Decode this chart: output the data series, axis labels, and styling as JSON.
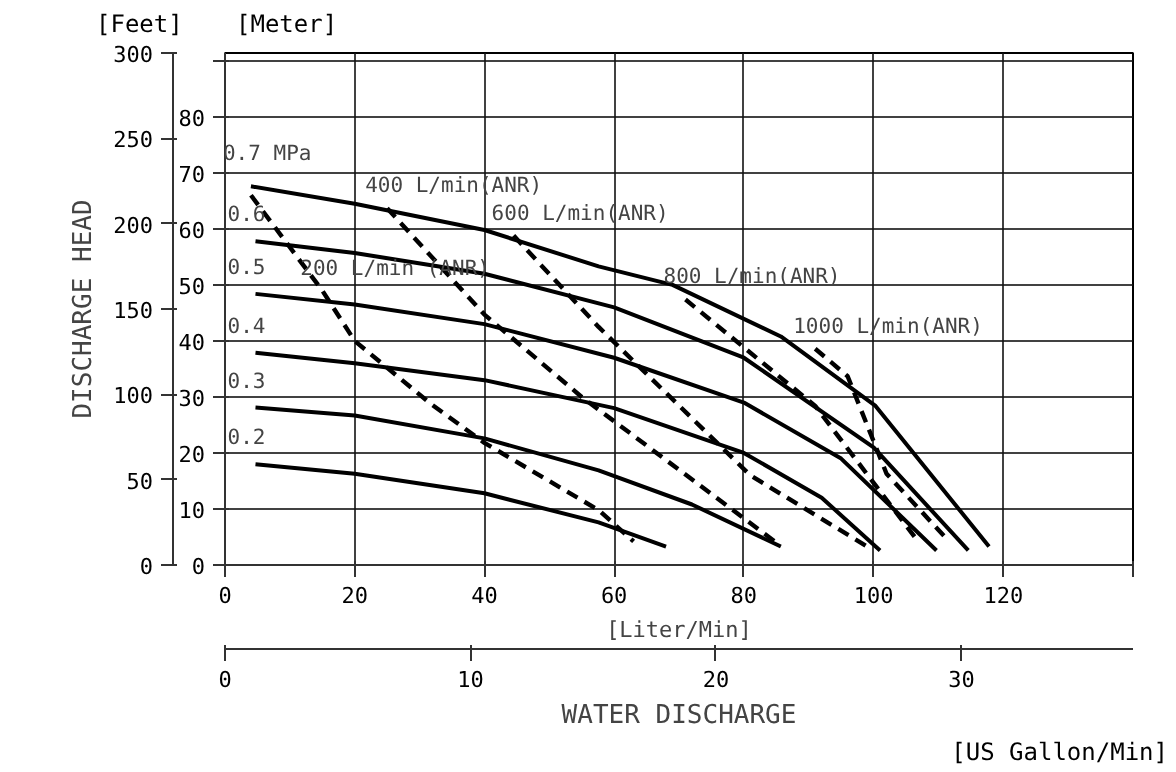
{
  "chart_data": {
    "type": "line",
    "xlabel": "[Liter/Min]",
    "x2label": "[US Gallon/Min]",
    "ylabel": "[Meter]",
    "y2label": "[Feet]",
    "xlim": [
      0,
      140
    ],
    "xticks": [
      0,
      20,
      40,
      60,
      80,
      100,
      120,
      {
        "value": 140,
        "label": null
      }
    ],
    "x2lim": [
      0,
      36.99
    ],
    "x2ticks": [
      0,
      10,
      20,
      30
    ],
    "ylim": [
      0,
      91.4
    ],
    "yticks": [
      0,
      10,
      20,
      30,
      40,
      50,
      60,
      70,
      80,
      {
        "value": 90,
        "label": null
      }
    ],
    "y2lim": [
      0,
      300
    ],
    "y2ticks": [
      0,
      50,
      100,
      150,
      200,
      250,
      300
    ],
    "grid": true,
    "marker": "none",
    "series": [
      {
        "color": "#000000",
        "line_style": "solid",
        "x": [
          4.7,
          20,
          40,
          57.6,
          72,
          85.7
        ],
        "values": [
          28.1,
          26.7,
          22.6,
          16.9,
          10.8,
          3.3
        ]
      },
      {
        "color": "#000000",
        "line_style": "solid",
        "x": [
          4.7,
          20,
          40,
          57.6,
          68
        ],
        "values": [
          18,
          16.3,
          12.8,
          7.6,
          3.3
        ]
      },
      {
        "color": "#000000",
        "line_style": "solid",
        "x": [
          4.7,
          20,
          40,
          60,
          80,
          92,
          101
        ],
        "values": [
          37.9,
          36,
          33,
          28,
          20,
          12,
          2.6
        ]
      },
      {
        "color": "#000000",
        "line_style": "solid",
        "x": [
          4.7,
          20,
          40,
          60,
          80,
          95,
          109.7
        ],
        "values": [
          48.4,
          46.5,
          43,
          37,
          29,
          19,
          2.6
        ]
      },
      {
        "color": "#000000",
        "line_style": "solid",
        "x": [
          4.7,
          20,
          40,
          60,
          80,
          100,
          114.6
        ],
        "values": [
          57.8,
          55.7,
          52,
          46,
          37,
          21,
          2.6
        ]
      },
      {
        "color": "#000000",
        "line_style": "solid",
        "x": [
          4,
          20,
          40,
          57.6,
          69,
          85.7,
          100.3,
          117.8
        ],
        "values": [
          67.6,
          64.5,
          59.8,
          53.3,
          50,
          40.8,
          28.4,
          3.3
        ]
      },
      {
        "color": "#000000",
        "line_style": "dashed",
        "x": [
          4,
          15,
          20,
          31.7,
          40,
          57.6,
          63
        ],
        "values": [
          66,
          49,
          40,
          28.8,
          21.8,
          9.8,
          4.2
        ]
      },
      {
        "color": "#000000",
        "line_style": "dashed",
        "x": [
          25,
          40,
          55,
          70,
          85
        ],
        "values": [
          63.7,
          44.7,
          30,
          17,
          4
        ]
      },
      {
        "color": "#000000",
        "line_style": "dashed",
        "x": [
          44.5,
          57.6,
          81,
          99
        ],
        "values": [
          58.8,
          42.5,
          16,
          3.3
        ]
      },
      {
        "color": "#000000",
        "line_style": "dashed",
        "x": [
          71,
          91,
          107
        ],
        "values": [
          47.4,
          28.4,
          4
        ]
      },
      {
        "color": "#000000",
        "line_style": "dashed",
        "x": [
          91,
          96,
          102,
          111
        ],
        "values": [
          38.6,
          33.7,
          16.3,
          5
        ]
      }
    ],
    "annotations": [
      "DISCHARGE HEAD",
      "WATER DISCHARGE",
      {
        "text": "0.7 MPa",
        "x": 4,
        "y": 67.6
      },
      {
        "text": "0.6",
        "x": 4.7,
        "y": 57.8
      },
      {
        "text": "0.5",
        "x": 4.7,
        "y": 48.4
      },
      {
        "text": "0.4",
        "x": 4.7,
        "y": 37.9
      },
      {
        "text": "0.3",
        "x": 4.7,
        "y": 28.1
      },
      {
        "text": "0.2",
        "x": 4.7,
        "y": 18
      },
      {
        "text": "200 L/min (ANR)",
        "x": 15,
        "y": 49
      },
      {
        "text": "400 L/min(ANR)",
        "x": 25,
        "y": 63.7
      },
      {
        "text": "600 L/min(ANR)",
        "x": 44.5,
        "y": 58.8
      },
      {
        "text": "800 L/min(ANR)",
        "x": 71,
        "y": 47.4
      },
      {
        "text": "1000 L/min(ANR)",
        "x": 91,
        "y": 38.6
      }
    ]
  }
}
